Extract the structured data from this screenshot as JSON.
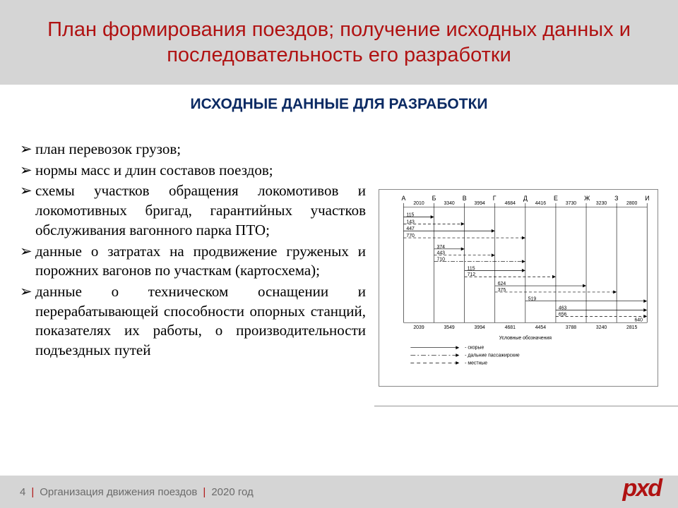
{
  "header": {
    "title": "План формирования поездов; получение исходных данных и последовательность его разработки",
    "title_color": "#b01212",
    "band_color": "#d5d5d5"
  },
  "subheading": {
    "text": "ИСХОДНЫЕ ДАННЫЕ ДЛЯ РАЗРАБОТКИ",
    "color": "#0b2a63"
  },
  "bullets": [
    "план перевозок грузов;",
    "нормы масс и длин составов поездов;",
    "схемы участков обращения локомотивов и локомотивных бригад, гарантийных участков обслуживания вагонного парка ПТО;",
    "данные о затратах на продвижение груженых и порожних вагонов по участкам (картосхема);",
    "данные о техническом оснащении и перерабатывающей способности опорных станций, показателях их работы, о производительности подъездных путей"
  ],
  "diagram": {
    "type": "schematic-chart",
    "stations": [
      "А",
      "Б",
      "В",
      "Г",
      "Д",
      "Е",
      "Ж",
      "З",
      "И"
    ],
    "top_distances": [
      "2010",
      "3340",
      "3994",
      "4684",
      "4416",
      "3730",
      "3230",
      "2800"
    ],
    "bottom_distances": [
      "2039",
      "3549",
      "3994",
      "4681",
      "4454",
      "3788",
      "3240",
      "2815"
    ],
    "left_group": [
      "115",
      "143",
      "447",
      "770"
    ],
    "mid_groups": [
      {
        "at": 1,
        "vals": [
          "374",
          "443",
          "710"
        ]
      },
      {
        "at": 2,
        "vals": [
          "115",
          "712"
        ]
      },
      {
        "at": 3,
        "vals": [
          "624",
          "375"
        ]
      },
      {
        "at": 4,
        "vals": [
          "519"
        ]
      },
      {
        "at": 5,
        "vals": [
          "463",
          "656"
        ]
      }
    ],
    "right_label": "640",
    "legend_title": "Условные обозначения",
    "legend": [
      {
        "style": "solid",
        "label": "скорые"
      },
      {
        "style": "dashdot",
        "label": "дальние пассажирские"
      },
      {
        "style": "dashed",
        "label": "местные"
      }
    ],
    "colors": {
      "line": "#000000",
      "border": "#888888",
      "text": "#000000"
    },
    "font_size_small": 7,
    "font_size_legend": 7
  },
  "footer": {
    "page": "4",
    "course": "Организация движения поездов",
    "year": "2020 год"
  },
  "logo_text": "pxd"
}
